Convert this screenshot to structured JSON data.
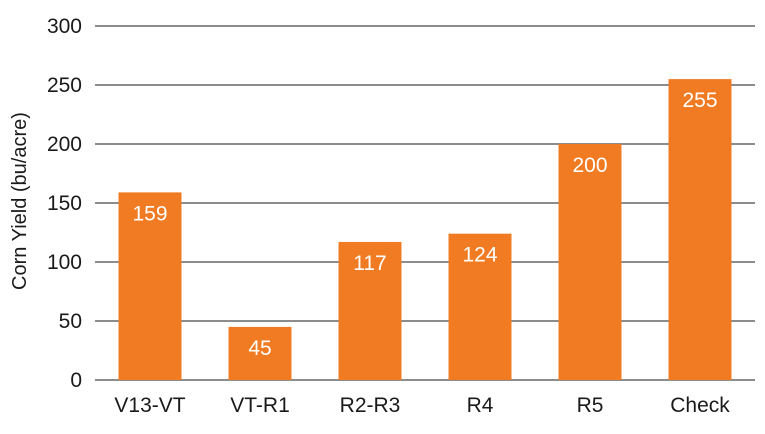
{
  "chart_data": {
    "type": "bar",
    "title": "",
    "xlabel": "",
    "ylabel": "Corn Yield (bu/acre)",
    "categories": [
      "V13-VT",
      "VT-R1",
      "R2-R3",
      "R4",
      "R5",
      "Check"
    ],
    "values": [
      159,
      45,
      117,
      124,
      200,
      255
    ],
    "data_labels": [
      "159",
      "45",
      "117",
      "124",
      "200",
      "255"
    ],
    "ylim": [
      0,
      300
    ],
    "yticks": [
      0,
      50,
      100,
      150,
      200,
      250,
      300
    ],
    "ytick_labels": [
      "0",
      "50",
      "100",
      "150",
      "200",
      "250",
      "300"
    ],
    "grid": "horizontal",
    "legend": "none",
    "colors": {
      "bar": "#F07B23",
      "grid": "#1a1a1a",
      "text": "#1a1a1a",
      "value_text": "#ffffff"
    }
  }
}
